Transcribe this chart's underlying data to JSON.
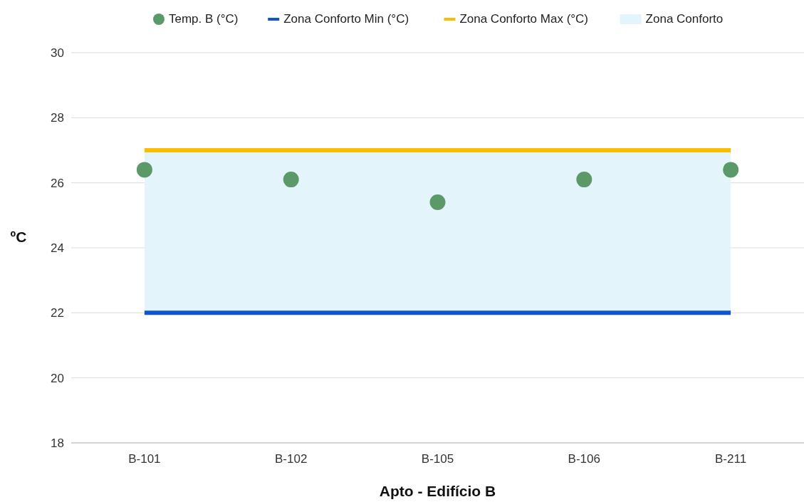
{
  "chart_data": {
    "type": "scatter",
    "xlabel": "Apto - Edifício B",
    "ylabel": "ºC",
    "categories": [
      "B-101",
      "B-102",
      "B-105",
      "B-106",
      "B-211"
    ],
    "series": [
      {
        "name": "Temp. B (°C)",
        "color": "#5b9a68",
        "values": [
          26.4,
          26.1,
          25.4,
          26.1,
          26.4
        ]
      },
      {
        "name": "Zona Conforto Min (°C)",
        "type": "line",
        "marker": "none",
        "color": "#1155cc",
        "values": [
          22,
          22,
          22,
          22,
          22
        ]
      },
      {
        "name": "Zona Conforto Max (°C)",
        "type": "line",
        "marker": "none",
        "color": "#fbbc04",
        "values": [
          27,
          27,
          27,
          27,
          27
        ]
      }
    ],
    "bands": [
      {
        "axis": "y",
        "from": 22,
        "to": 27,
        "label": "Zona Conforto",
        "color": "#e3f4fa"
      }
    ],
    "ylim": [
      18,
      30
    ],
    "yticks": [
      18,
      20,
      22,
      24,
      26,
      28,
      30
    ],
    "grid": "y",
    "legend": "top",
    "marker": "circle"
  }
}
